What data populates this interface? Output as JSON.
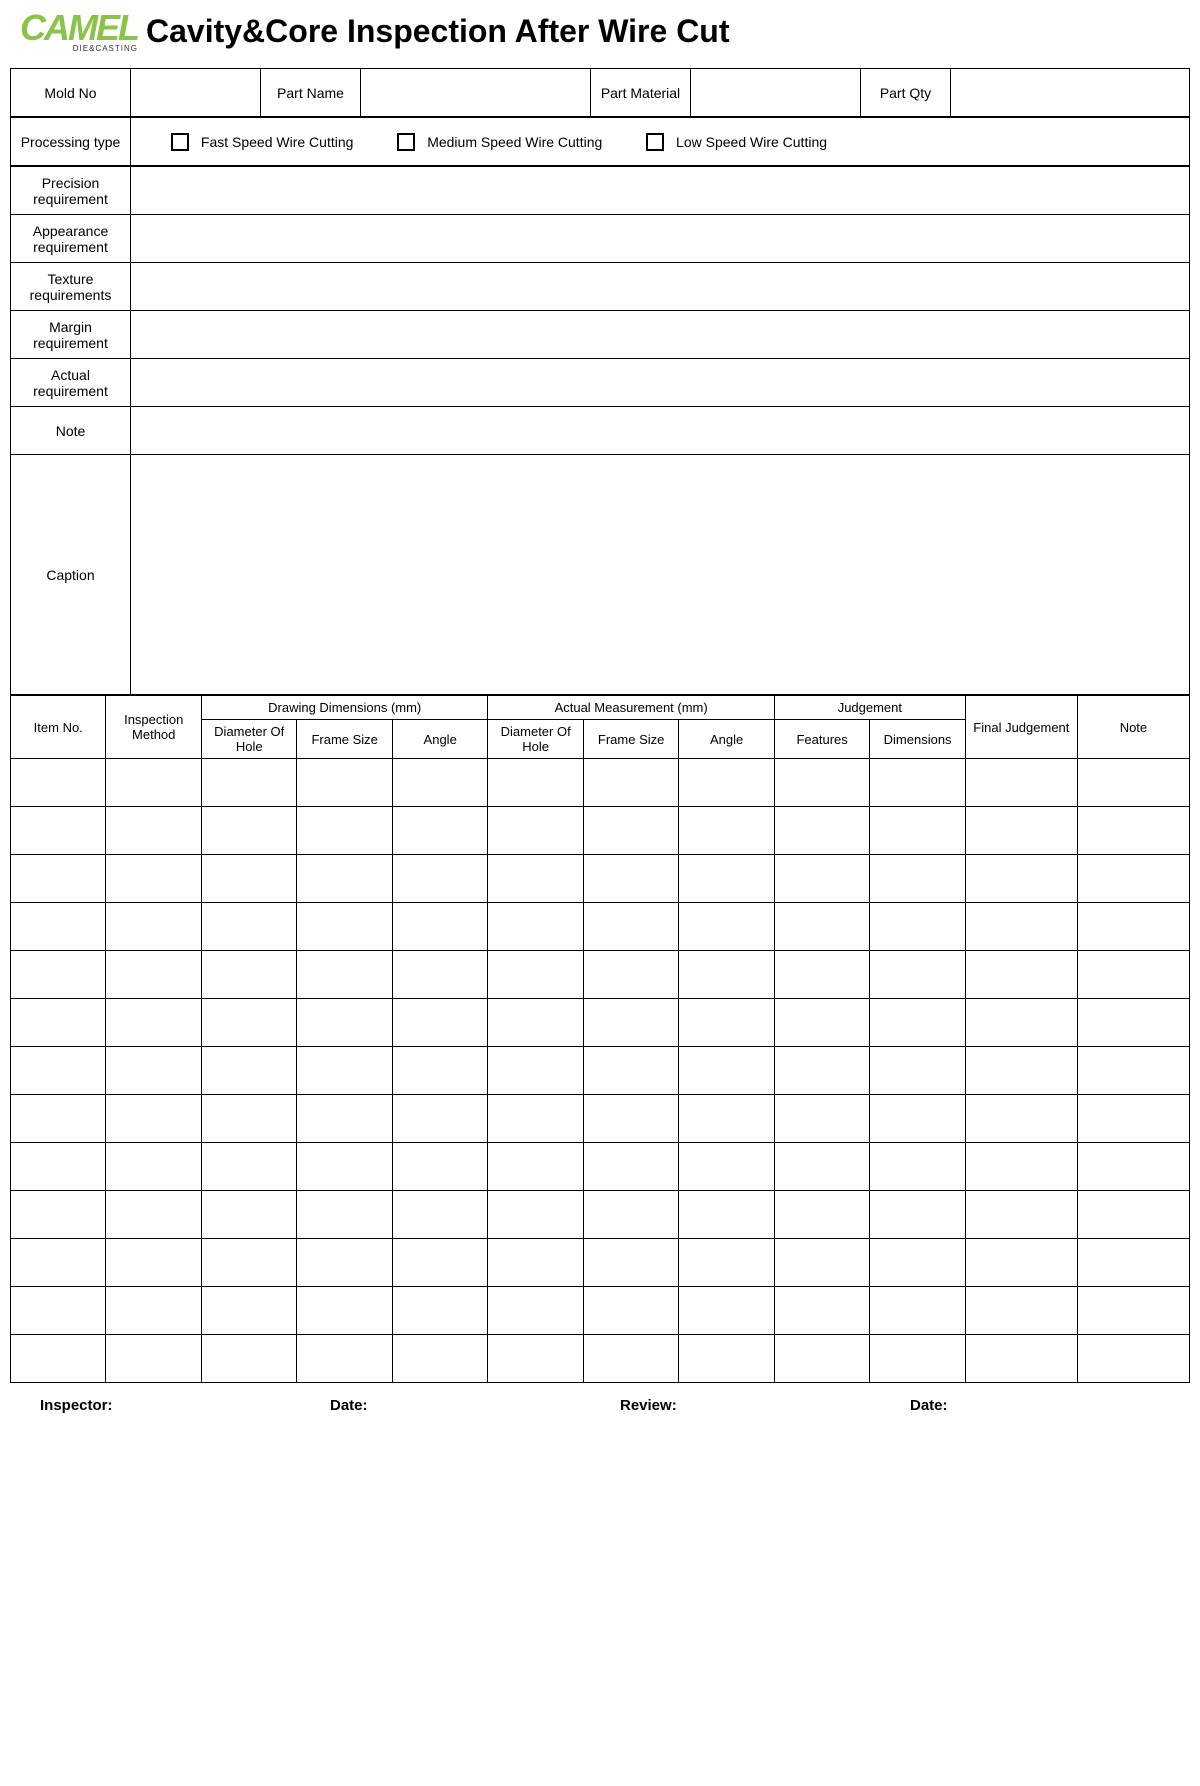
{
  "logo": {
    "main": "CAMEL",
    "sub": "DIE&CASTING",
    "color": "#8bc34a"
  },
  "title": "Cavity&Core Inspection After Wire Cut",
  "info_row": {
    "mold_no_label": "Mold No",
    "mold_no_value": "",
    "part_name_label": "Part Name",
    "part_name_value": "",
    "part_material_label": "Part Material",
    "part_material_value": "",
    "part_qty_label": "Part Qty",
    "part_qty_value": ""
  },
  "processing": {
    "label": "Processing type",
    "options": [
      "Fast Speed Wire Cutting",
      "Medium Speed Wire Cutting",
      "Low Speed Wire Cutting"
    ]
  },
  "requirements": [
    {
      "label": "Precision requirement",
      "value": ""
    },
    {
      "label": "Appearance requirement",
      "value": ""
    },
    {
      "label": "Texture requirements",
      "value": ""
    },
    {
      "label": "Margin requirement",
      "value": ""
    },
    {
      "label": "Actual requirement",
      "value": ""
    }
  ],
  "note": {
    "label": "Note",
    "value": ""
  },
  "caption": {
    "label": "Caption",
    "value": ""
  },
  "data_table": {
    "headers": {
      "item_no": "Item No.",
      "inspection_method": "Inspection Method",
      "drawing_dimensions": "Drawing Dimensions (mm)",
      "actual_measurement": "Actual Measurement (mm)",
      "judgement": "Judgement",
      "final_judgement": "Final Judgement",
      "note": "Note"
    },
    "subheaders": {
      "diameter_of_hole": "Diameter Of Hole",
      "frame_size": "Frame Size",
      "angle": "Angle",
      "features": "Features",
      "dimensions": "Dimensions"
    },
    "row_count": 13
  },
  "footer": {
    "inspector": "Inspector:",
    "date1": "Date:",
    "review": "Review:",
    "date2": "Date:"
  },
  "style": {
    "border_color": "#000000",
    "background": "#ffffff",
    "text_color": "#000000",
    "title_fontsize": 32,
    "cell_fontsize": 14
  }
}
